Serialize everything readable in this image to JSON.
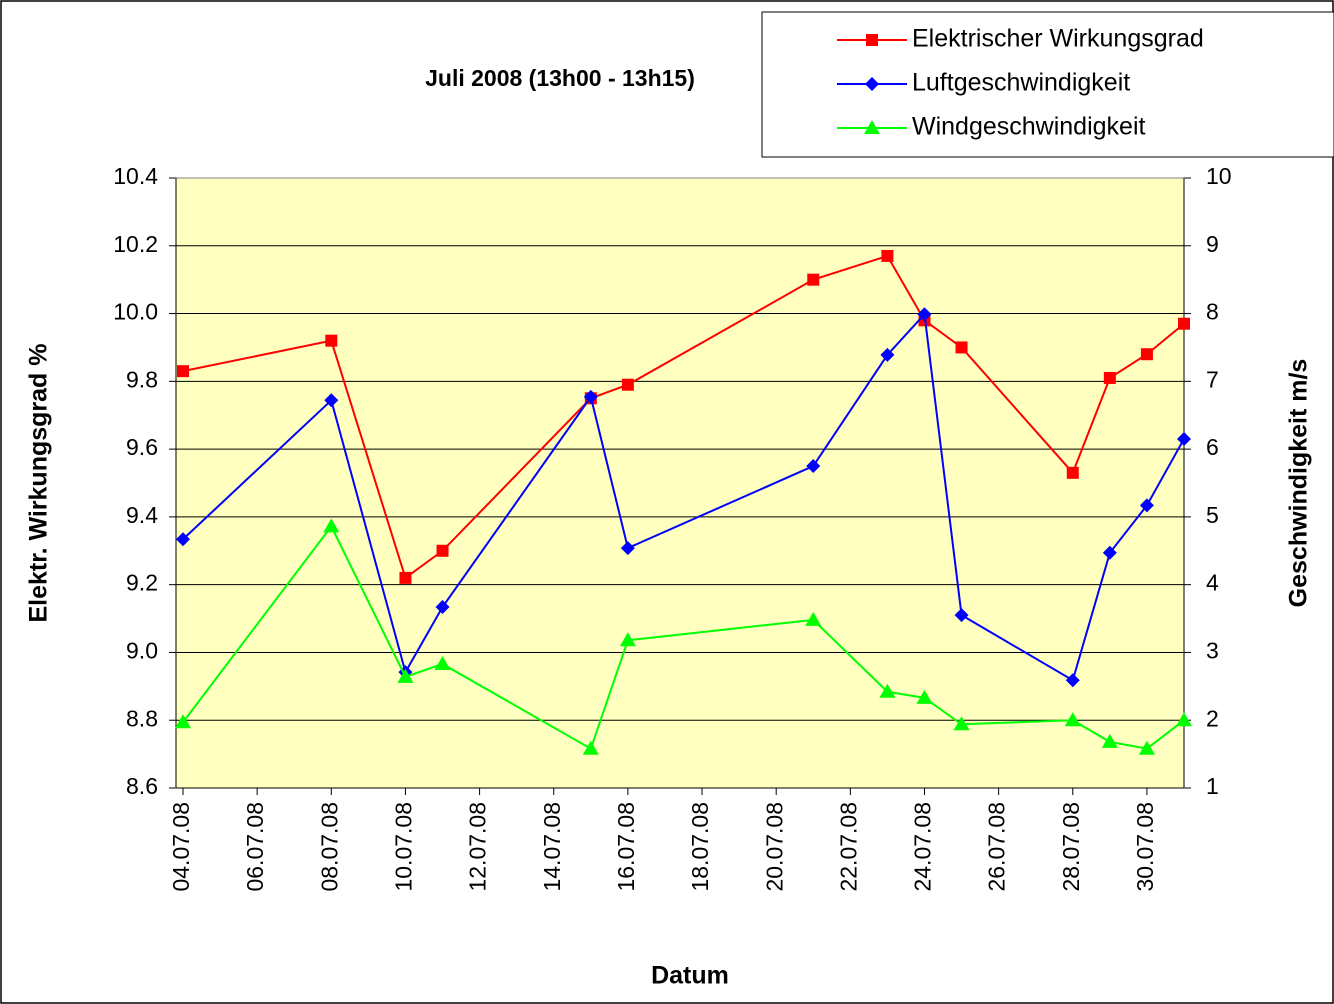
{
  "chart_data": {
    "type": "line",
    "title": "Juli 2008 (13h00 - 13h15)",
    "x_label": "Datum",
    "y_label": "Elektr. Wirkungsgrad %",
    "y2_label": "Geschwindigkeit m/s",
    "x": [
      "2008-07-04",
      "2008-07-08",
      "2008-07-10",
      "2008-07-11",
      "2008-07-15",
      "2008-07-16",
      "2008-07-21",
      "2008-07-23",
      "2008-07-24",
      "2008-07-25",
      "2008-07-28",
      "2008-07-29",
      "2008-07-30",
      "2008-07-31"
    ],
    "xlim": [
      "2008-07-04",
      "2008-07-31"
    ],
    "xticks": [
      {
        "value": "2008-07-04",
        "label": "04.07.08"
      },
      {
        "value": "2008-07-06",
        "label": "06.07.08"
      },
      {
        "value": "2008-07-08",
        "label": "08.07.08"
      },
      {
        "value": "2008-07-10",
        "label": "10.07.08"
      },
      {
        "value": "2008-07-12",
        "label": "12.07.08"
      },
      {
        "value": "2008-07-14",
        "label": "14.07.08"
      },
      {
        "value": "2008-07-16",
        "label": "16.07.08"
      },
      {
        "value": "2008-07-18",
        "label": "18.07.08"
      },
      {
        "value": "2008-07-20",
        "label": "20.07.08"
      },
      {
        "value": "2008-07-22",
        "label": "22.07.08"
      },
      {
        "value": "2008-07-24",
        "label": "24.07.08"
      },
      {
        "value": "2008-07-26",
        "label": "26.07.08"
      },
      {
        "value": "2008-07-28",
        "label": "28.07.08"
      },
      {
        "value": "2008-07-30",
        "label": "30.07.08"
      }
    ],
    "ylim": [
      8.6,
      10.4
    ],
    "yticks": [
      8.6,
      8.8,
      {
        "value": 9,
        "label": "9.0"
      },
      9.2,
      9.4,
      9.6,
      9.8,
      {
        "value": 10,
        "label": "10.0"
      },
      10.2,
      10.4
    ],
    "y2lim": [
      1,
      10
    ],
    "y2ticks": [
      1,
      2,
      3,
      4,
      5,
      6,
      7,
      8,
      9,
      10
    ],
    "grid": true,
    "plot_background": "#ffffc0",
    "series": [
      {
        "name": "Elektrischer Wirkungsgrad",
        "color": "#ff0000",
        "marker": "square",
        "values": [
          9.83,
          9.92,
          9.22,
          9.3,
          9.75,
          9.79,
          10.1,
          10.17,
          9.98,
          9.9,
          9.53,
          9.81,
          9.88,
          9.97
        ]
      },
      {
        "name": "Luftgeschwindigkeit",
        "color": "#0000ff",
        "marker": "diamond",
        "axis": "y2",
        "values": [
          4.67,
          6.72,
          2.71,
          3.67,
          6.77,
          4.54,
          5.75,
          7.39,
          7.99,
          3.55,
          2.59,
          4.47,
          5.17,
          6.15
        ]
      },
      {
        "name": "Windgeschwindigkeit",
        "color": "#00ff00",
        "marker": "triangle",
        "axis": "y2",
        "values": [
          1.97,
          4.86,
          2.64,
          2.83,
          1.58,
          3.18,
          3.48,
          2.42,
          2.33,
          1.94,
          2.0,
          1.68,
          1.58,
          2.0
        ]
      }
    ]
  }
}
